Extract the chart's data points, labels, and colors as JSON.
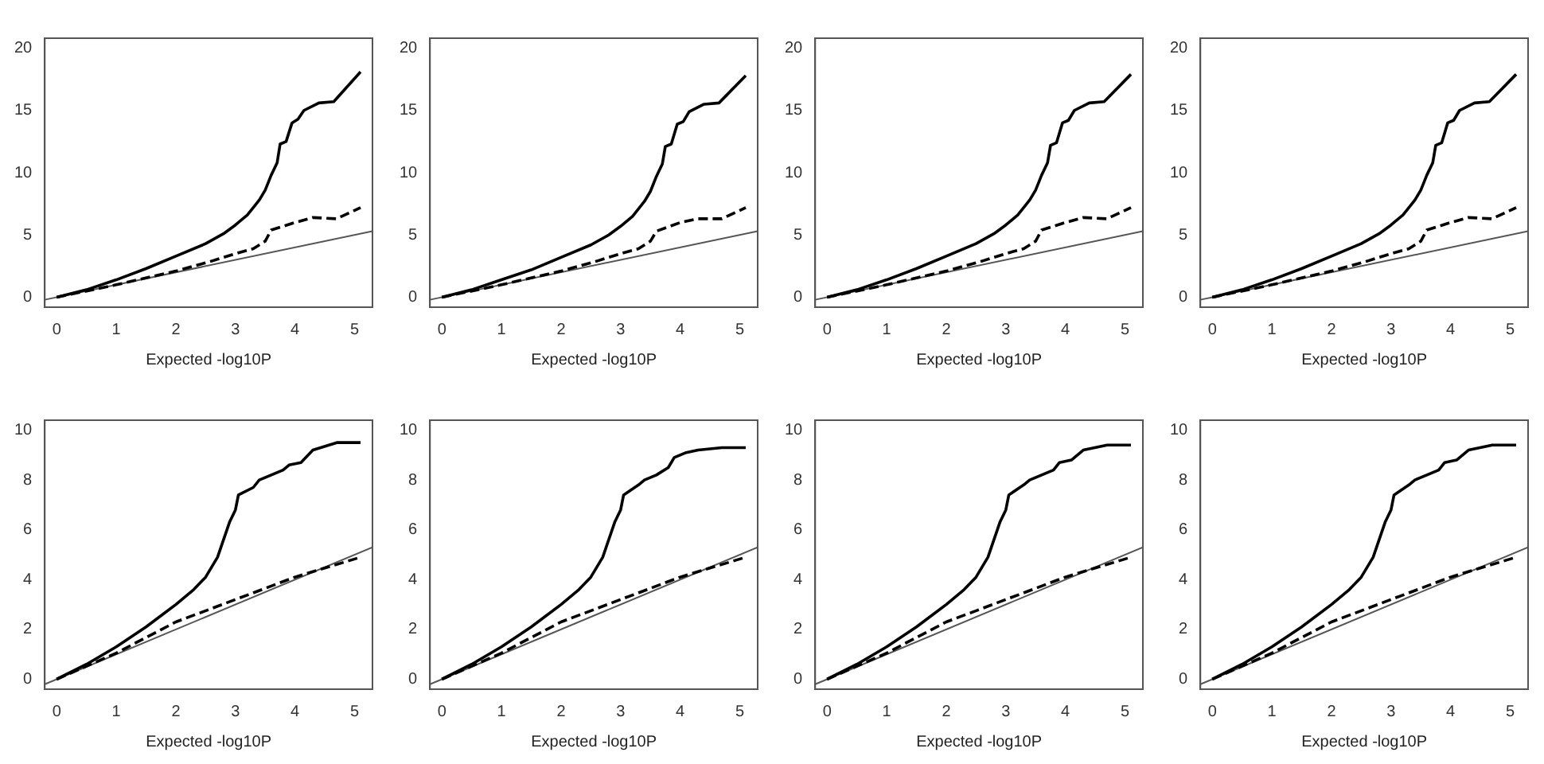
{
  "chart_data": [
    {
      "type": "line",
      "xlabel": "Expected -log10P",
      "xlim": [
        -0.2,
        5.3
      ],
      "xticks": [
        0,
        1,
        2,
        3,
        4,
        5
      ],
      "ylim": [
        -0.8,
        20.8
      ],
      "yticks": [
        0,
        5,
        10,
        15,
        20
      ],
      "grid": false,
      "legend": false,
      "marker": "none",
      "series": [
        {
          "color": "#000000",
          "line_style": "solid",
          "x": [
            0,
            0.5,
            1,
            1.5,
            2,
            2.5,
            2.8,
            3,
            3.2,
            3.4,
            3.5,
            3.6,
            3.7,
            3.75,
            3.85,
            3.95,
            4.05,
            4.15,
            4.4,
            4.65,
            5.1
          ],
          "values": [
            0,
            0.6,
            1.4,
            2.3,
            3.3,
            4.3,
            5.1,
            5.8,
            6.6,
            7.8,
            8.6,
            9.8,
            10.8,
            12.3,
            12.5,
            14,
            14.3,
            15,
            15.6,
            15.7,
            18.1
          ]
        },
        {
          "color": "#000000",
          "line_style": "dashed",
          "x": [
            0,
            1,
            2,
            2.6,
            3,
            3.3,
            3.5,
            3.6,
            4,
            4.3,
            4.7,
            5.1
          ],
          "values": [
            0,
            1,
            2.1,
            2.9,
            3.5,
            3.9,
            4.5,
            5.4,
            6,
            6.4,
            6.3,
            7.2
          ]
        },
        {
          "color": "#555555",
          "line_style": "solid",
          "x": [
            -0.2,
            5.3
          ],
          "values": [
            -0.2,
            5.3
          ]
        }
      ]
    },
    {
      "type": "line",
      "xlabel": "Expected -log10P",
      "xlim": [
        -0.2,
        5.3
      ],
      "xticks": [
        0,
        1,
        2,
        3,
        4,
        5
      ],
      "ylim": [
        -0.8,
        20.8
      ],
      "yticks": [
        0,
        5,
        10,
        15,
        20
      ],
      "grid": false,
      "legend": false,
      "marker": "none",
      "series": [
        {
          "color": "#000000",
          "line_style": "solid",
          "x": [
            0,
            0.5,
            1,
            1.5,
            2,
            2.5,
            2.8,
            3,
            3.2,
            3.4,
            3.5,
            3.6,
            3.7,
            3.75,
            3.85,
            3.95,
            4.05,
            4.15,
            4.4,
            4.65,
            5.1
          ],
          "values": [
            0,
            0.6,
            1.4,
            2.2,
            3.2,
            4.2,
            5,
            5.7,
            6.5,
            7.7,
            8.5,
            9.7,
            10.7,
            12.1,
            12.3,
            13.9,
            14.1,
            14.9,
            15.5,
            15.6,
            17.8
          ]
        },
        {
          "color": "#000000",
          "line_style": "dashed",
          "x": [
            0,
            1,
            2,
            2.6,
            3,
            3.3,
            3.5,
            3.6,
            4,
            4.3,
            4.7,
            5.1
          ],
          "values": [
            0,
            1,
            2.1,
            2.9,
            3.5,
            3.9,
            4.5,
            5.3,
            6,
            6.3,
            6.3,
            7.2
          ]
        },
        {
          "color": "#555555",
          "line_style": "solid",
          "x": [
            -0.2,
            5.3
          ],
          "values": [
            -0.2,
            5.3
          ]
        }
      ]
    },
    {
      "type": "line",
      "xlabel": "Expected -log10P",
      "xlim": [
        -0.2,
        5.3
      ],
      "xticks": [
        0,
        1,
        2,
        3,
        4,
        5
      ],
      "ylim": [
        -0.8,
        20.8
      ],
      "yticks": [
        0,
        5,
        10,
        15,
        20
      ],
      "grid": false,
      "legend": false,
      "marker": "none",
      "series": [
        {
          "color": "#000000",
          "line_style": "solid",
          "x": [
            0,
            0.5,
            1,
            1.5,
            2,
            2.5,
            2.8,
            3,
            3.2,
            3.4,
            3.5,
            3.6,
            3.7,
            3.75,
            3.85,
            3.95,
            4.05,
            4.15,
            4.4,
            4.65,
            5.1
          ],
          "values": [
            0,
            0.6,
            1.4,
            2.3,
            3.3,
            4.3,
            5.1,
            5.8,
            6.6,
            7.8,
            8.6,
            9.8,
            10.8,
            12.2,
            12.4,
            14,
            14.2,
            15,
            15.6,
            15.7,
            17.9
          ]
        },
        {
          "color": "#000000",
          "line_style": "dashed",
          "x": [
            0,
            1,
            2,
            2.6,
            3,
            3.3,
            3.5,
            3.6,
            4,
            4.3,
            4.7,
            5.1
          ],
          "values": [
            0,
            1,
            2.1,
            2.9,
            3.5,
            3.9,
            4.5,
            5.4,
            6,
            6.4,
            6.3,
            7.2
          ]
        },
        {
          "color": "#555555",
          "line_style": "solid",
          "x": [
            -0.2,
            5.3
          ],
          "values": [
            -0.2,
            5.3
          ]
        }
      ]
    },
    {
      "type": "line",
      "xlabel": "Expected -log10P",
      "xlim": [
        -0.2,
        5.3
      ],
      "xticks": [
        0,
        1,
        2,
        3,
        4,
        5
      ],
      "ylim": [
        -0.8,
        20.8
      ],
      "yticks": [
        0,
        5,
        10,
        15,
        20
      ],
      "grid": false,
      "legend": false,
      "marker": "none",
      "series": [
        {
          "color": "#000000",
          "line_style": "solid",
          "x": [
            0,
            0.5,
            1,
            1.5,
            2,
            2.5,
            2.8,
            3,
            3.2,
            3.4,
            3.5,
            3.6,
            3.7,
            3.75,
            3.85,
            3.95,
            4.05,
            4.15,
            4.4,
            4.65,
            5.1
          ],
          "values": [
            0,
            0.6,
            1.4,
            2.3,
            3.3,
            4.3,
            5.1,
            5.8,
            6.6,
            7.8,
            8.6,
            9.8,
            10.8,
            12.2,
            12.4,
            14,
            14.2,
            15,
            15.6,
            15.7,
            17.9
          ]
        },
        {
          "color": "#000000",
          "line_style": "dashed",
          "x": [
            0,
            1,
            2,
            2.6,
            3,
            3.3,
            3.5,
            3.6,
            4,
            4.3,
            4.7,
            5.1
          ],
          "values": [
            0,
            1,
            2.1,
            2.9,
            3.5,
            3.9,
            4.5,
            5.4,
            6,
            6.4,
            6.3,
            7.2
          ]
        },
        {
          "color": "#555555",
          "line_style": "solid",
          "x": [
            -0.2,
            5.3
          ],
          "values": [
            -0.2,
            5.3
          ]
        }
      ]
    },
    {
      "type": "line",
      "xlabel": "Expected -log10P",
      "xlim": [
        -0.2,
        5.3
      ],
      "xticks": [
        0,
        1,
        2,
        3,
        4,
        5
      ],
      "ylim": [
        -0.4,
        10.4
      ],
      "yticks": [
        0,
        2,
        4,
        6,
        8,
        10
      ],
      "grid": false,
      "legend": false,
      "marker": "none",
      "series": [
        {
          "color": "#000000",
          "line_style": "solid",
          "x": [
            0,
            0.5,
            1,
            1.5,
            2,
            2.3,
            2.5,
            2.7,
            2.9,
            3,
            3.05,
            3.3,
            3.4,
            3.6,
            3.8,
            3.9,
            4.1,
            4.3,
            4.7,
            5.1
          ],
          "values": [
            0,
            0.6,
            1.3,
            2.1,
            3,
            3.6,
            4.1,
            4.9,
            6.3,
            6.8,
            7.4,
            7.7,
            8,
            8.2,
            8.4,
            8.6,
            8.7,
            9.2,
            9.5,
            9.5
          ]
        },
        {
          "color": "#000000",
          "line_style": "dashed",
          "x": [
            0,
            1,
            2,
            3,
            4,
            5.1
          ],
          "values": [
            0,
            1.05,
            2.3,
            3.2,
            4.1,
            4.9
          ]
        },
        {
          "color": "#555555",
          "line_style": "solid",
          "x": [
            -0.2,
            5.3
          ],
          "values": [
            -0.2,
            5.3
          ]
        }
      ]
    },
    {
      "type": "line",
      "xlabel": "Expected -log10P",
      "xlim": [
        -0.2,
        5.3
      ],
      "xticks": [
        0,
        1,
        2,
        3,
        4,
        5
      ],
      "ylim": [
        -0.4,
        10.4
      ],
      "yticks": [
        0,
        2,
        4,
        6,
        8,
        10
      ],
      "grid": false,
      "legend": false,
      "marker": "none",
      "series": [
        {
          "color": "#000000",
          "line_style": "solid",
          "x": [
            0,
            0.5,
            1,
            1.5,
            2,
            2.3,
            2.5,
            2.7,
            2.9,
            3,
            3.05,
            3.3,
            3.4,
            3.6,
            3.8,
            3.9,
            4.1,
            4.3,
            4.7,
            5.1
          ],
          "values": [
            0,
            0.6,
            1.3,
            2.1,
            3,
            3.6,
            4.1,
            4.9,
            6.3,
            6.8,
            7.4,
            7.8,
            8,
            8.2,
            8.5,
            8.9,
            9.1,
            9.2,
            9.3,
            9.3
          ]
        },
        {
          "color": "#000000",
          "line_style": "dashed",
          "x": [
            0,
            1,
            2,
            3,
            4,
            5.1
          ],
          "values": [
            0,
            1.05,
            2.3,
            3.2,
            4.1,
            4.9
          ]
        },
        {
          "color": "#555555",
          "line_style": "solid",
          "x": [
            -0.2,
            5.3
          ],
          "values": [
            -0.2,
            5.3
          ]
        }
      ]
    },
    {
      "type": "line",
      "xlabel": "Expected -log10P",
      "xlim": [
        -0.2,
        5.3
      ],
      "xticks": [
        0,
        1,
        2,
        3,
        4,
        5
      ],
      "ylim": [
        -0.4,
        10.4
      ],
      "yticks": [
        0,
        2,
        4,
        6,
        8,
        10
      ],
      "grid": false,
      "legend": false,
      "marker": "none",
      "series": [
        {
          "color": "#000000",
          "line_style": "solid",
          "x": [
            0,
            0.5,
            1,
            1.5,
            2,
            2.3,
            2.5,
            2.7,
            2.9,
            3,
            3.05,
            3.3,
            3.4,
            3.6,
            3.8,
            3.9,
            4.1,
            4.3,
            4.7,
            5.1
          ],
          "values": [
            0,
            0.6,
            1.3,
            2.1,
            3,
            3.6,
            4.1,
            4.9,
            6.3,
            6.8,
            7.4,
            7.8,
            8,
            8.2,
            8.4,
            8.7,
            8.8,
            9.2,
            9.4,
            9.4
          ]
        },
        {
          "color": "#000000",
          "line_style": "dashed",
          "x": [
            0,
            1,
            2,
            3,
            4,
            5.1
          ],
          "values": [
            0,
            1.05,
            2.3,
            3.2,
            4.1,
            4.9
          ]
        },
        {
          "color": "#555555",
          "line_style": "solid",
          "x": [
            -0.2,
            5.3
          ],
          "values": [
            -0.2,
            5.3
          ]
        }
      ]
    },
    {
      "type": "line",
      "xlabel": "Expected -log10P",
      "xlim": [
        -0.2,
        5.3
      ],
      "xticks": [
        0,
        1,
        2,
        3,
        4,
        5
      ],
      "ylim": [
        -0.4,
        10.4
      ],
      "yticks": [
        0,
        2,
        4,
        6,
        8,
        10
      ],
      "grid": false,
      "legend": false,
      "marker": "none",
      "series": [
        {
          "color": "#000000",
          "line_style": "solid",
          "x": [
            0,
            0.5,
            1,
            1.5,
            2,
            2.3,
            2.5,
            2.7,
            2.9,
            3,
            3.05,
            3.3,
            3.4,
            3.6,
            3.8,
            3.9,
            4.1,
            4.3,
            4.7,
            5.1
          ],
          "values": [
            0,
            0.6,
            1.3,
            2.1,
            3,
            3.6,
            4.1,
            4.9,
            6.3,
            6.8,
            7.4,
            7.8,
            8,
            8.2,
            8.4,
            8.7,
            8.8,
            9.2,
            9.4,
            9.4
          ]
        },
        {
          "color": "#000000",
          "line_style": "dashed",
          "x": [
            0,
            1,
            2,
            3,
            4,
            5.1
          ],
          "values": [
            0,
            1.05,
            2.3,
            3.2,
            4.1,
            4.9
          ]
        },
        {
          "color": "#555555",
          "line_style": "solid",
          "x": [
            -0.2,
            5.3
          ],
          "values": [
            -0.2,
            5.3
          ]
        }
      ]
    }
  ]
}
